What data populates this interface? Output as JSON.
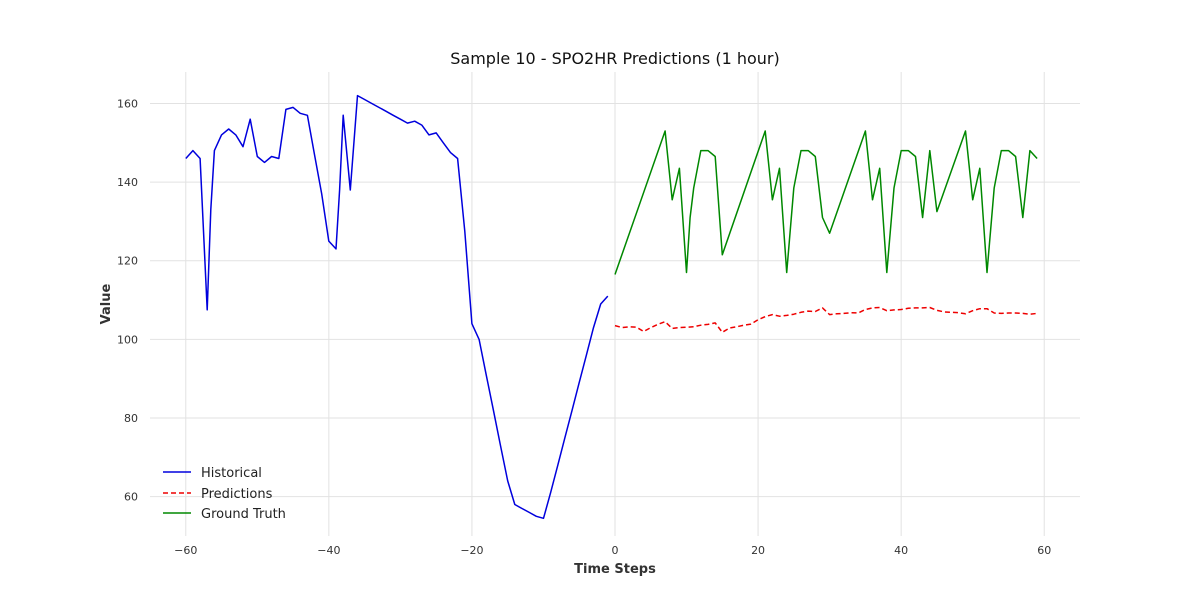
{
  "chart_data": {
    "type": "line",
    "title": "Sample 10 - SPO2HR Predictions (1 hour)",
    "xlabel": "Time Steps",
    "ylabel": "Value",
    "xlim": [
      -65,
      65
    ],
    "ylim": [
      50,
      168
    ],
    "xticks": [
      -60,
      -40,
      -20,
      0,
      20,
      40,
      60
    ],
    "yticks": [
      60,
      80,
      100,
      120,
      140,
      160
    ],
    "xtick_labels": [
      "−60",
      "−40",
      "−20",
      "0",
      "20",
      "40",
      "60"
    ],
    "ytick_labels": [
      "60",
      "80",
      "100",
      "120",
      "140",
      "160"
    ],
    "grid": true,
    "legend_position": "lower-left",
    "series": [
      {
        "name": "Historical",
        "color": "#0000dd",
        "style": "solid",
        "x": [
          -60,
          -59,
          -58,
          -57,
          -56.5,
          -56,
          -55,
          -54,
          -53,
          -52,
          -51,
          -50,
          -49,
          -48,
          -47,
          -46,
          -45,
          -44,
          -43,
          -42,
          -41,
          -40,
          -39,
          -38.5,
          -38,
          -37,
          -36,
          -35,
          -34,
          -33,
          -32,
          -31,
          -30,
          -29,
          -28,
          -27,
          -26,
          -25,
          -24,
          -23,
          -22,
          -21,
          -20,
          -19,
          -18,
          -17,
          -16,
          -15,
          -14,
          -13,
          -12,
          -11,
          -10,
          -9,
          -8,
          -7,
          -6,
          -5,
          -4,
          -3,
          -2,
          -1
        ],
        "y": [
          146,
          148,
          146,
          107.5,
          133,
          148,
          152,
          153.5,
          152,
          149,
          156,
          146.5,
          145,
          146.5,
          146,
          158.5,
          159,
          157.5,
          157,
          147,
          137,
          125,
          123,
          138,
          157,
          138,
          162,
          161,
          160,
          159,
          158,
          157,
          156,
          155,
          155.5,
          154.5,
          152,
          152.5,
          150,
          147.5,
          146,
          127.5,
          104,
          100,
          91,
          82,
          73,
          64,
          58,
          57,
          56,
          55,
          54.5,
          61,
          68,
          75,
          82,
          89,
          96,
          103,
          109,
          111
        ]
      },
      {
        "name": "Predictions",
        "color": "#ee0000",
        "style": "dashed",
        "x": [
          0,
          1,
          2,
          3,
          4,
          5,
          6,
          7,
          8,
          9,
          10,
          11,
          12,
          13,
          14,
          15,
          16,
          17,
          18,
          19,
          20,
          21,
          22,
          23,
          24,
          25,
          26,
          27,
          28,
          29,
          30,
          31,
          32,
          33,
          34,
          35,
          36,
          37,
          38,
          39,
          40,
          41,
          42,
          43,
          44,
          45,
          46,
          47,
          48,
          49,
          50,
          51,
          52,
          53,
          54,
          55,
          56,
          57,
          58,
          59
        ],
        "y": [
          103.5,
          103,
          103.2,
          103.1,
          102,
          103,
          103.8,
          104.5,
          102.8,
          103,
          103.1,
          103.2,
          103.6,
          103.8,
          104.2,
          101.8,
          102.9,
          103.2,
          103.6,
          103.9,
          105,
          105.8,
          106.3,
          105.9,
          106.1,
          106.4,
          106.9,
          107.2,
          107.1,
          108,
          106.3,
          106.5,
          106.6,
          106.8,
          106.7,
          107.6,
          108,
          108.1,
          107.3,
          107.5,
          107.6,
          107.9,
          108,
          108,
          108.1,
          107.4,
          107,
          106.9,
          106.8,
          106.5,
          107.3,
          107.8,
          107.8,
          106.7,
          106.6,
          106.7,
          106.7,
          106.6,
          106.4,
          106.6
        ]
      },
      {
        "name": "Ground Truth",
        "color": "#008800",
        "style": "solid",
        "x": [
          0,
          7,
          8,
          9,
          10,
          10.5,
          11,
          12,
          13,
          14,
          15,
          21,
          22,
          23,
          24,
          25,
          26,
          27,
          28,
          29,
          30,
          35,
          36,
          37,
          38,
          39,
          40,
          41,
          42,
          43,
          44,
          45,
          49,
          50,
          51,
          52,
          53,
          54,
          55,
          56,
          57,
          58,
          59
        ],
        "y": [
          116.5,
          153,
          135.5,
          143.5,
          117,
          131,
          138.5,
          148,
          148,
          146.5,
          121.5,
          153,
          135.5,
          143.5,
          117,
          138.5,
          148,
          148,
          146.5,
          131,
          127,
          153,
          135.5,
          143.5,
          117,
          138.5,
          148,
          148,
          146.5,
          131,
          148,
          132.5,
          153,
          135.5,
          143.5,
          117,
          138.5,
          148,
          148,
          146.5,
          131,
          148,
          146
        ]
      }
    ]
  }
}
